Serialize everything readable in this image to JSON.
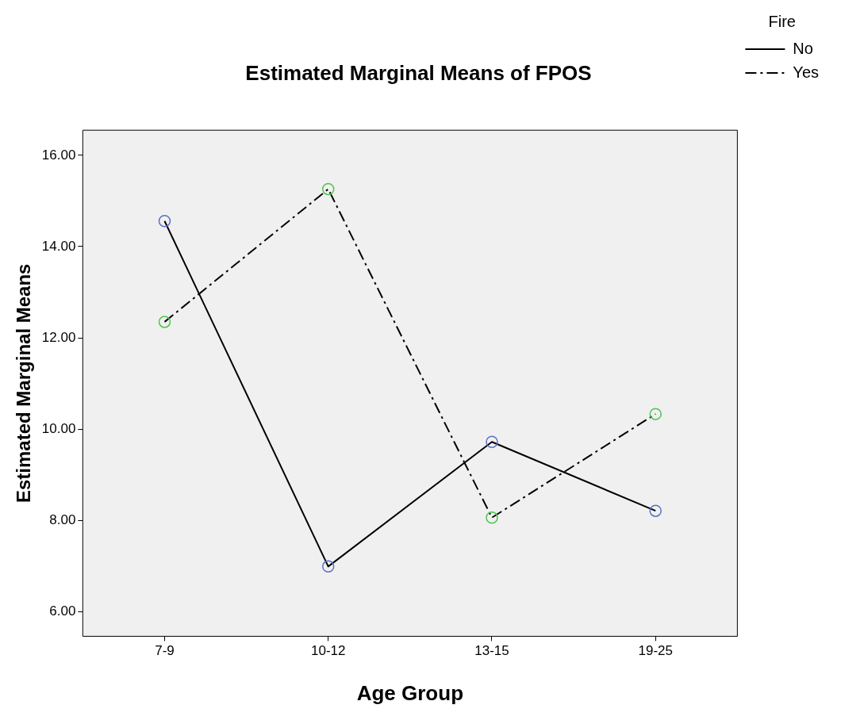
{
  "chart_data": {
    "type": "line",
    "title": "Estimated Marginal Means of FPOS",
    "xlabel": "Age Group",
    "ylabel": "Estimated Marginal Means",
    "legend_title": "Fire",
    "categories": [
      "7-9",
      "10-12",
      "13-15",
      "19-25"
    ],
    "series": [
      {
        "name": "No",
        "color": "#000000",
        "colors": [
          "#5b6fc7",
          "#5b6fc7",
          "#5b6fc7",
          "#5b6fc7"
        ],
        "values": [
          14.56,
          6.99,
          9.72,
          8.21
        ],
        "line_style": "solid"
      },
      {
        "name": "Yes",
        "color": "#000000",
        "colors": [
          "#4fc34f",
          "#4fc34f",
          "#4fc34f",
          "#4fc34f"
        ],
        "values": [
          12.35,
          15.26,
          8.06,
          10.33
        ],
        "line_style": "dashed"
      }
    ],
    "ylim": [
      5.46,
      16.55
    ],
    "yticks": [
      {
        "value": 6,
        "label": "6.00"
      },
      {
        "value": 8,
        "label": "8.00"
      },
      {
        "value": 10,
        "label": "10.00"
      },
      {
        "value": 12,
        "label": "12.00"
      },
      {
        "value": 14,
        "label": "14.00"
      },
      {
        "value": 16,
        "label": "16.00"
      }
    ],
    "grid": false,
    "legend": "top right",
    "marker": "circle"
  }
}
